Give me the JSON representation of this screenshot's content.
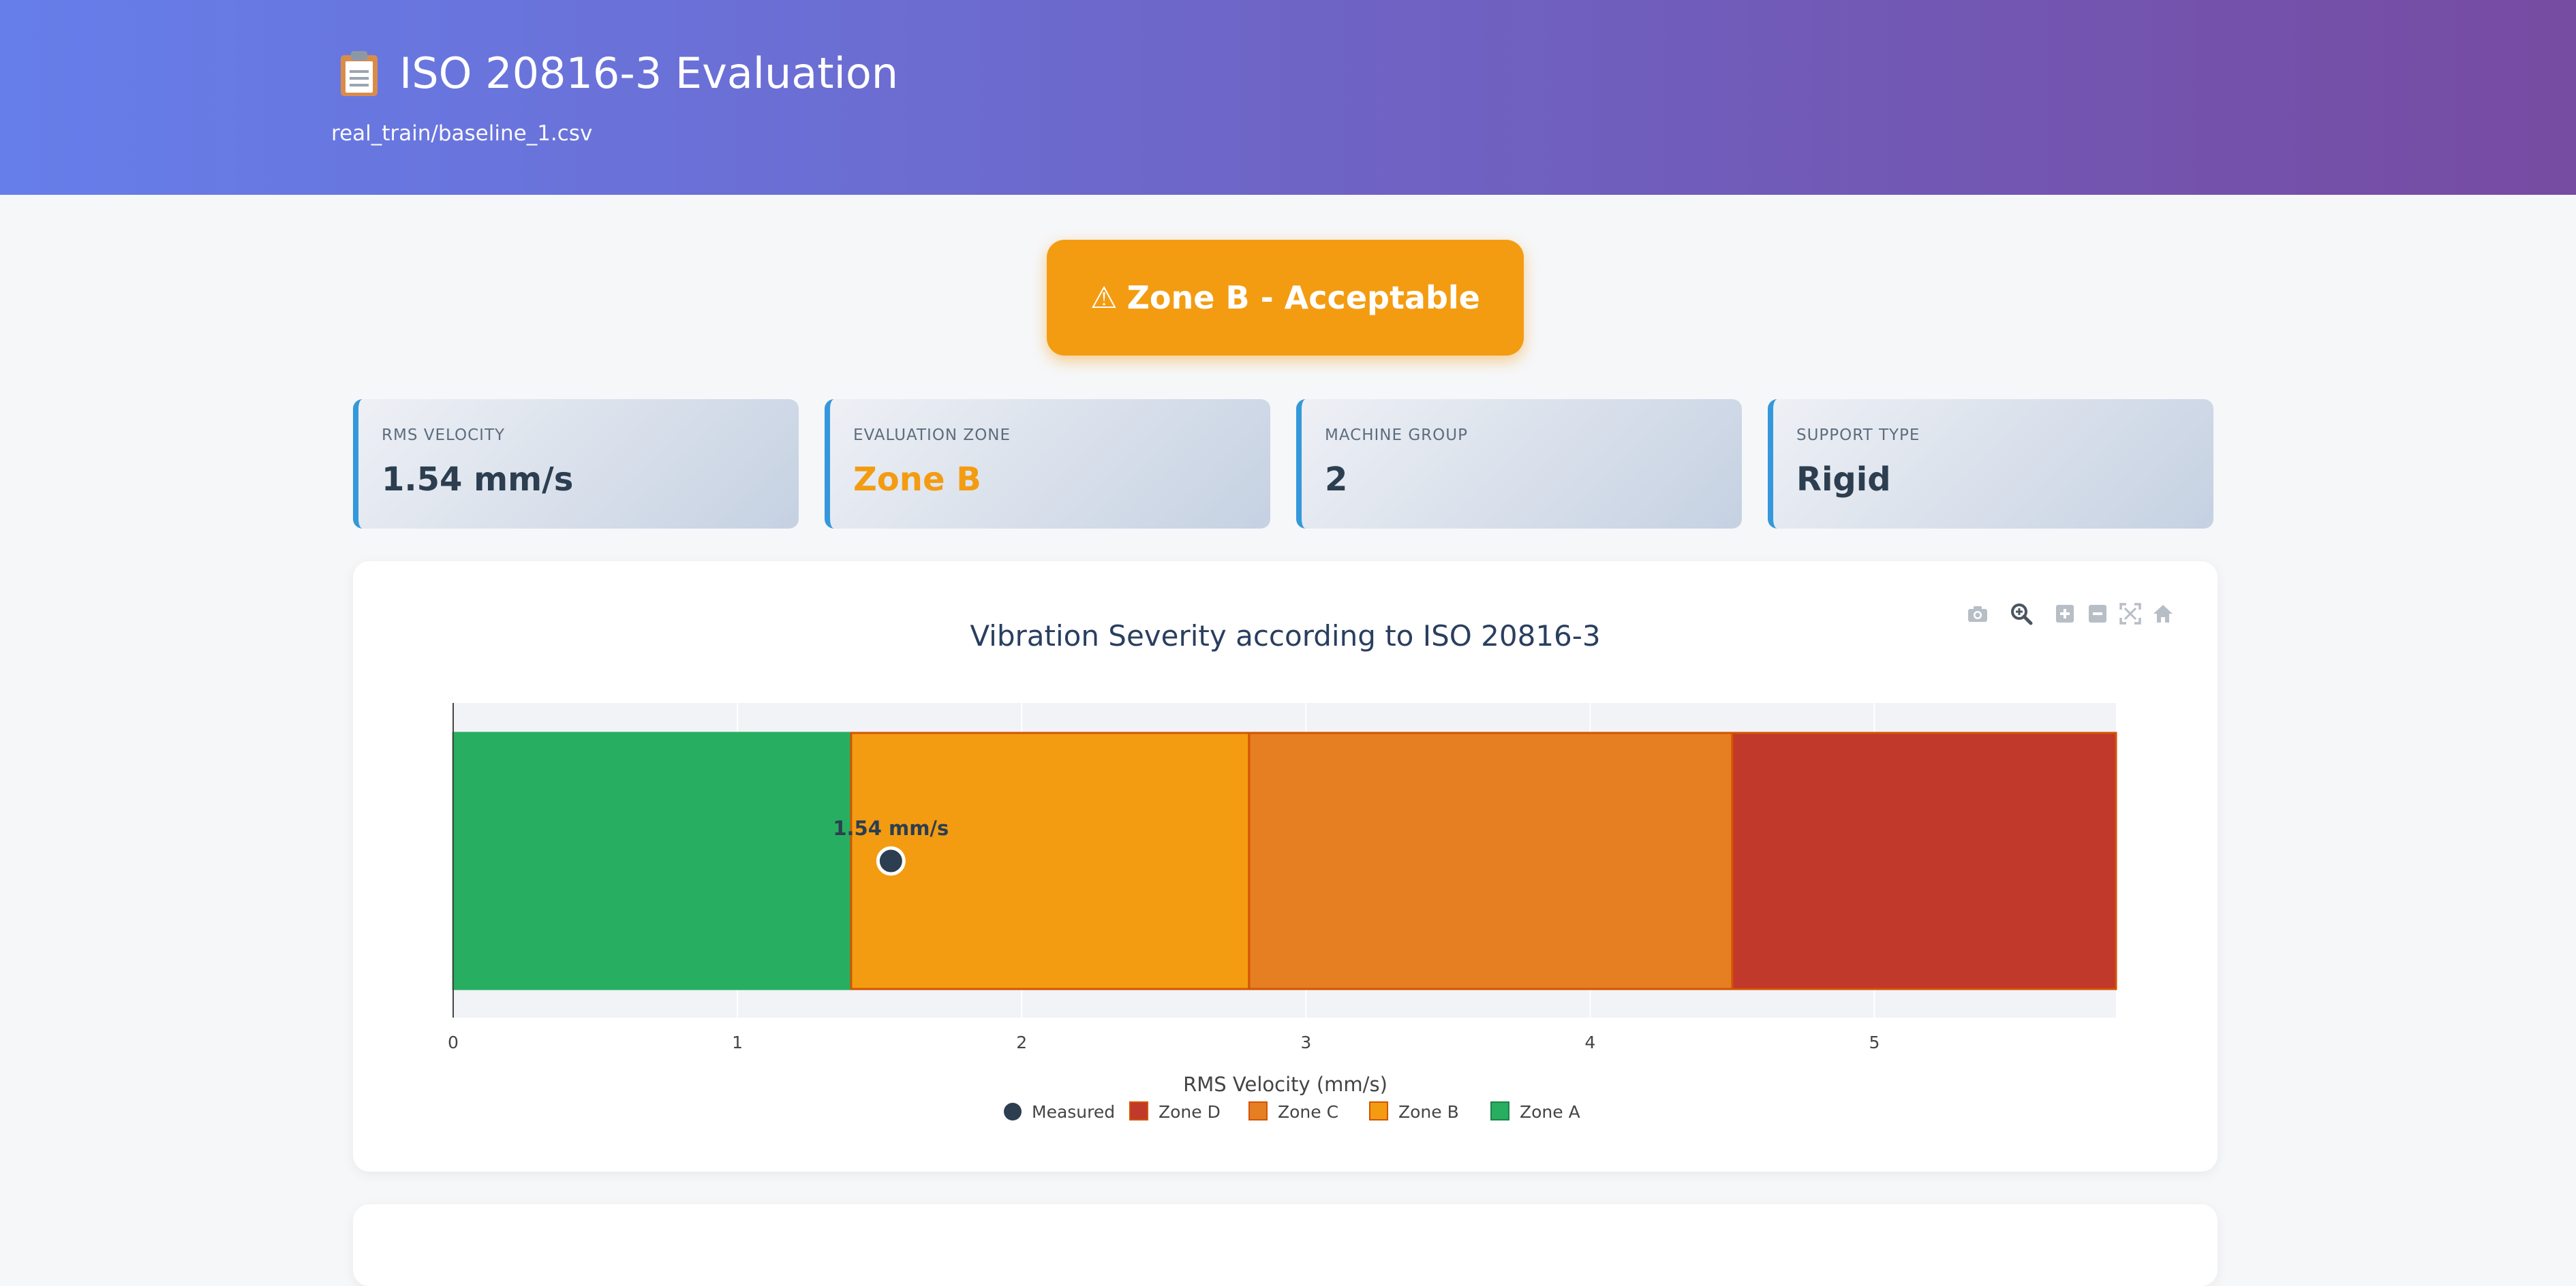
{
  "header": {
    "title": "ISO 20816-3 Evaluation",
    "subtitle": "real_train/baseline_1.csv",
    "title_icon": "clipboard-icon"
  },
  "status_banner": {
    "icon": "warning-icon",
    "icon_glyph": "⚠",
    "text": "Zone B - Acceptable",
    "color": "#f39c12"
  },
  "cards": [
    {
      "label": "RMS VELOCITY",
      "value": "1.54 mm/s"
    },
    {
      "label": "EVALUATION ZONE",
      "value": "Zone B",
      "value_color": "#f39c12"
    },
    {
      "label": "MACHINE GROUP",
      "value": "2"
    },
    {
      "label": "SUPPORT TYPE",
      "value": "Rigid"
    }
  ],
  "toolbar": {
    "icons": [
      "camera-icon",
      "zoom-icon",
      "zoom-in-icon",
      "zoom-out-icon",
      "autoscale-icon",
      "reset-axes-home-icon"
    ]
  },
  "chart_data": {
    "type": "bar",
    "orientation": "horizontal-stacked",
    "title": "Vibration Severity according to ISO 20816-3",
    "xlabel": "RMS Velocity (mm/s)",
    "ylabel": "",
    "xlim": [
      0,
      5.85
    ],
    "xticks": [
      "0",
      "1",
      "2",
      "3",
      "4",
      "5"
    ],
    "grid": true,
    "legend_placement": "bottom-center",
    "series": [
      {
        "name": "Zone A",
        "start": 0,
        "end": 1.4,
        "color": "#27ae60"
      },
      {
        "name": "Zone B",
        "start": 1.4,
        "end": 2.8,
        "color": "#f39c12"
      },
      {
        "name": "Zone C",
        "start": 2.8,
        "end": 4.5,
        "color": "#e67e22"
      },
      {
        "name": "Zone D",
        "start": 4.5,
        "end": 5.85,
        "color": "#c0392b"
      }
    ],
    "measured": {
      "name": "Measured",
      "value": 1.54,
      "label": "1.54 mm/s",
      "color": "#2c3e50"
    },
    "legend": [
      "Measured",
      "Zone D",
      "Zone C",
      "Zone B",
      "Zone A"
    ]
  }
}
